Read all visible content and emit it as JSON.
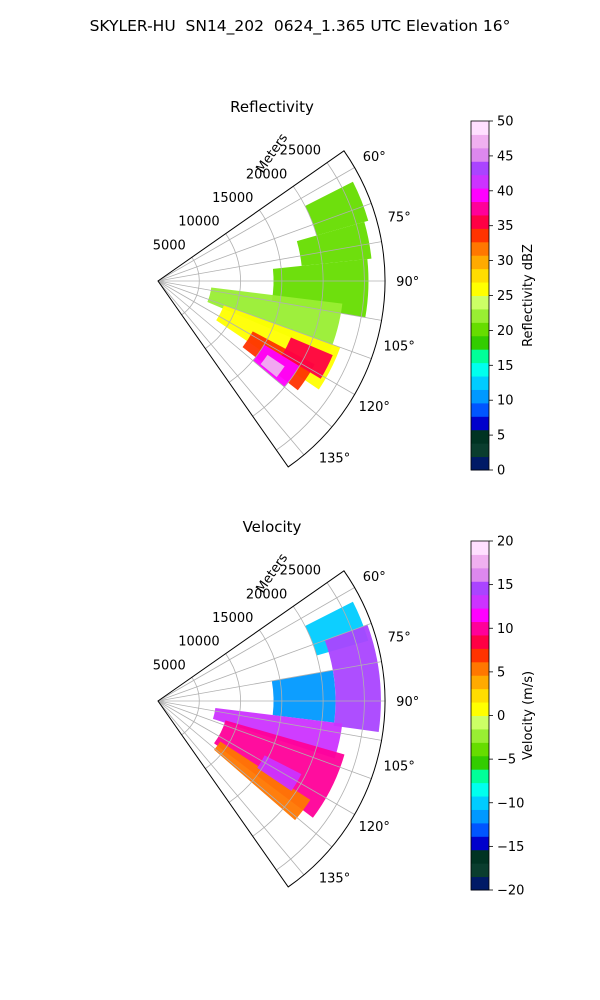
{
  "figure_title": "SKYLER-HU  SN14_202  0624_1.365 UTC Elevation 16°",
  "chart_data": [
    {
      "type": "heatmap",
      "title": "Reflectivity",
      "theta_range_deg": [
        55,
        145
      ],
      "r_range_m": [
        0,
        27500
      ],
      "r_label": "Meters",
      "r_ticks": [
        5000,
        10000,
        15000,
        20000,
        25000
      ],
      "r_tick_labels": [
        "5000",
        "10000",
        "15000",
        "20000",
        "25000"
      ],
      "theta_ticks": [
        60,
        75,
        90,
        105,
        120,
        135
      ],
      "theta_tick_labels": [
        "60°",
        "75°",
        "90°",
        "105°",
        "120°",
        "135°"
      ],
      "grid": true,
      "colorbar": {
        "label": "Reflectivity dBZ",
        "range": [
          0,
          50
        ],
        "ticks": [
          0,
          5,
          10,
          15,
          20,
          25,
          30,
          35,
          40,
          45,
          50
        ],
        "tick_labels": [
          "0",
          "5",
          "10",
          "15",
          "20",
          "25",
          "30",
          "35",
          "40",
          "45",
          "50"
        ],
        "colors": [
          "#001a66",
          "#0a3d2e",
          "#003322",
          "#0000cc",
          "#0055ff",
          "#0099ff",
          "#00ccff",
          "#00ffee",
          "#00ff99",
          "#33cc00",
          "#66dd00",
          "#99ee33",
          "#ccff66",
          "#ffff00",
          "#ffdd00",
          "#ffaa00",
          "#ff7700",
          "#ff3300",
          "#ff0044",
          "#ff0099",
          "#ff00ff",
          "#cc33ff",
          "#aa44ff",
          "#dd88ee",
          "#f0b0f0",
          "#ffe0ff"
        ]
      },
      "regions": [
        {
          "t1": 63,
          "t2": 74,
          "r1": 20000,
          "r2": 26500,
          "value": 20
        },
        {
          "t1": 74,
          "t2": 84,
          "r1": 17500,
          "r2": 26000,
          "value": 20
        },
        {
          "t1": 84,
          "t2": 100,
          "r1": 14000,
          "r2": 25500,
          "value": 21
        },
        {
          "t1": 97,
          "t2": 113,
          "r1": 6500,
          "r2": 22500,
          "value": 22
        },
        {
          "t1": 110,
          "t2": 124,
          "r1": 8500,
          "r2": 23500,
          "value": 26
        },
        {
          "t1": 118,
          "t2": 128,
          "r1": 13000,
          "r2": 21500,
          "value": 34
        },
        {
          "t1": 121,
          "t2": 130,
          "r1": 15000,
          "r2": 20000,
          "value": 40
        },
        {
          "t1": 124,
          "t2": 129,
          "r1": 16000,
          "r2": 18500,
          "value": 47
        },
        {
          "t1": 113,
          "t2": 121,
          "r1": 17500,
          "r2": 23000,
          "value": 36
        }
      ]
    },
    {
      "type": "heatmap",
      "title": "Velocity",
      "theta_range_deg": [
        55,
        145
      ],
      "r_range_m": [
        0,
        27500
      ],
      "r_label": "Meters",
      "r_ticks": [
        5000,
        10000,
        15000,
        20000,
        25000
      ],
      "r_tick_labels": [
        "5000",
        "10000",
        "15000",
        "20000",
        "25000"
      ],
      "theta_ticks": [
        60,
        75,
        90,
        105,
        120,
        135
      ],
      "theta_tick_labels": [
        "60°",
        "75°",
        "90°",
        "105°",
        "120°",
        "135°"
      ],
      "grid": true,
      "colorbar": {
        "label": "Velocity (m/s)",
        "range": [
          -20,
          20
        ],
        "ticks": [
          -20,
          -15,
          -10,
          -5,
          0,
          5,
          10,
          15,
          20
        ],
        "tick_labels": [
          "−20",
          "−15",
          "−10",
          "−5",
          "0",
          "5",
          "10",
          "15",
          "20"
        ],
        "colors": [
          "#001a66",
          "#0a3d2e",
          "#003322",
          "#0000cc",
          "#0055ff",
          "#0099ff",
          "#00ccff",
          "#00ffee",
          "#00ff99",
          "#33cc00",
          "#66dd00",
          "#99ee33",
          "#ccff66",
          "#ffff00",
          "#ffdd00",
          "#ffaa00",
          "#ff7700",
          "#ff3300",
          "#ff0044",
          "#ff0099",
          "#ff00ff",
          "#cc33ff",
          "#aa44ff",
          "#dd88ee",
          "#f0b0f0",
          "#ffe0ff"
        ]
      },
      "regions": [
        {
          "t1": 63,
          "t2": 74,
          "r1": 20000,
          "r2": 26500,
          "value": -10
        },
        {
          "t1": 70,
          "t2": 98,
          "r1": 21500,
          "r2": 27000,
          "value": 15
        },
        {
          "t1": 80,
          "t2": 97,
          "r1": 14000,
          "r2": 21500,
          "value": -11
        },
        {
          "t1": 97,
          "t2": 108,
          "r1": 7000,
          "r2": 22500,
          "value": 13
        },
        {
          "t1": 106,
          "t2": 127,
          "r1": 8500,
          "r2": 23500,
          "value": 10
        },
        {
          "t1": 123,
          "t2": 131,
          "r1": 9000,
          "r2": 22000,
          "value": 5
        },
        {
          "t1": 117,
          "t2": 124,
          "r1": 14500,
          "r2": 19500,
          "value": 13
        }
      ]
    }
  ]
}
